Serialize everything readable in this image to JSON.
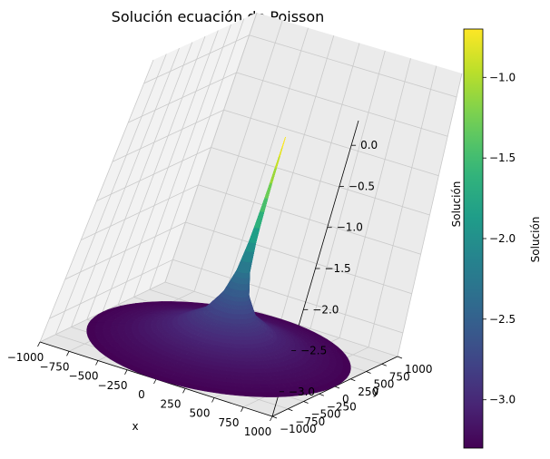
{
  "chart_data": {
    "type": "surface3d",
    "title": "Solución ecuación de Poisson",
    "xlabel": "x",
    "ylabel": "y",
    "zlabel": "Solución",
    "colorbar_label": "Solución",
    "colormap": "viridis",
    "domain": "disk",
    "radius": 1000,
    "xlim": [
      -1000,
      1000
    ],
    "ylim": [
      -1000,
      1000
    ],
    "zlim": [
      -3.3,
      0.3
    ],
    "clim": [
      -3.3,
      -0.7
    ],
    "x_ticks": [
      "−1000",
      "−750",
      "−500",
      "−250",
      "0",
      "250",
      "500",
      "750",
      "1000"
    ],
    "y_ticks": [
      "−1000",
      "−750",
      "−500",
      "−250",
      "0",
      "250",
      "500",
      "750",
      "1000"
    ],
    "z_ticks": [
      "−3.0",
      "−2.5",
      "−2.0",
      "−1.5",
      "−1.0",
      "−0.5",
      "0.0"
    ],
    "colorbar_ticks": [
      "−3.0",
      "−2.5",
      "−2.0",
      "−1.5",
      "−1.0"
    ],
    "surface": {
      "r": [
        0,
        10,
        25,
        50,
        100,
        200,
        400,
        700,
        1000
      ],
      "z": [
        -0.6,
        -1.3,
        -1.9,
        -2.3,
        -2.6,
        -2.85,
        -3.05,
        -3.2,
        -3.3
      ]
    },
    "grid": true
  }
}
